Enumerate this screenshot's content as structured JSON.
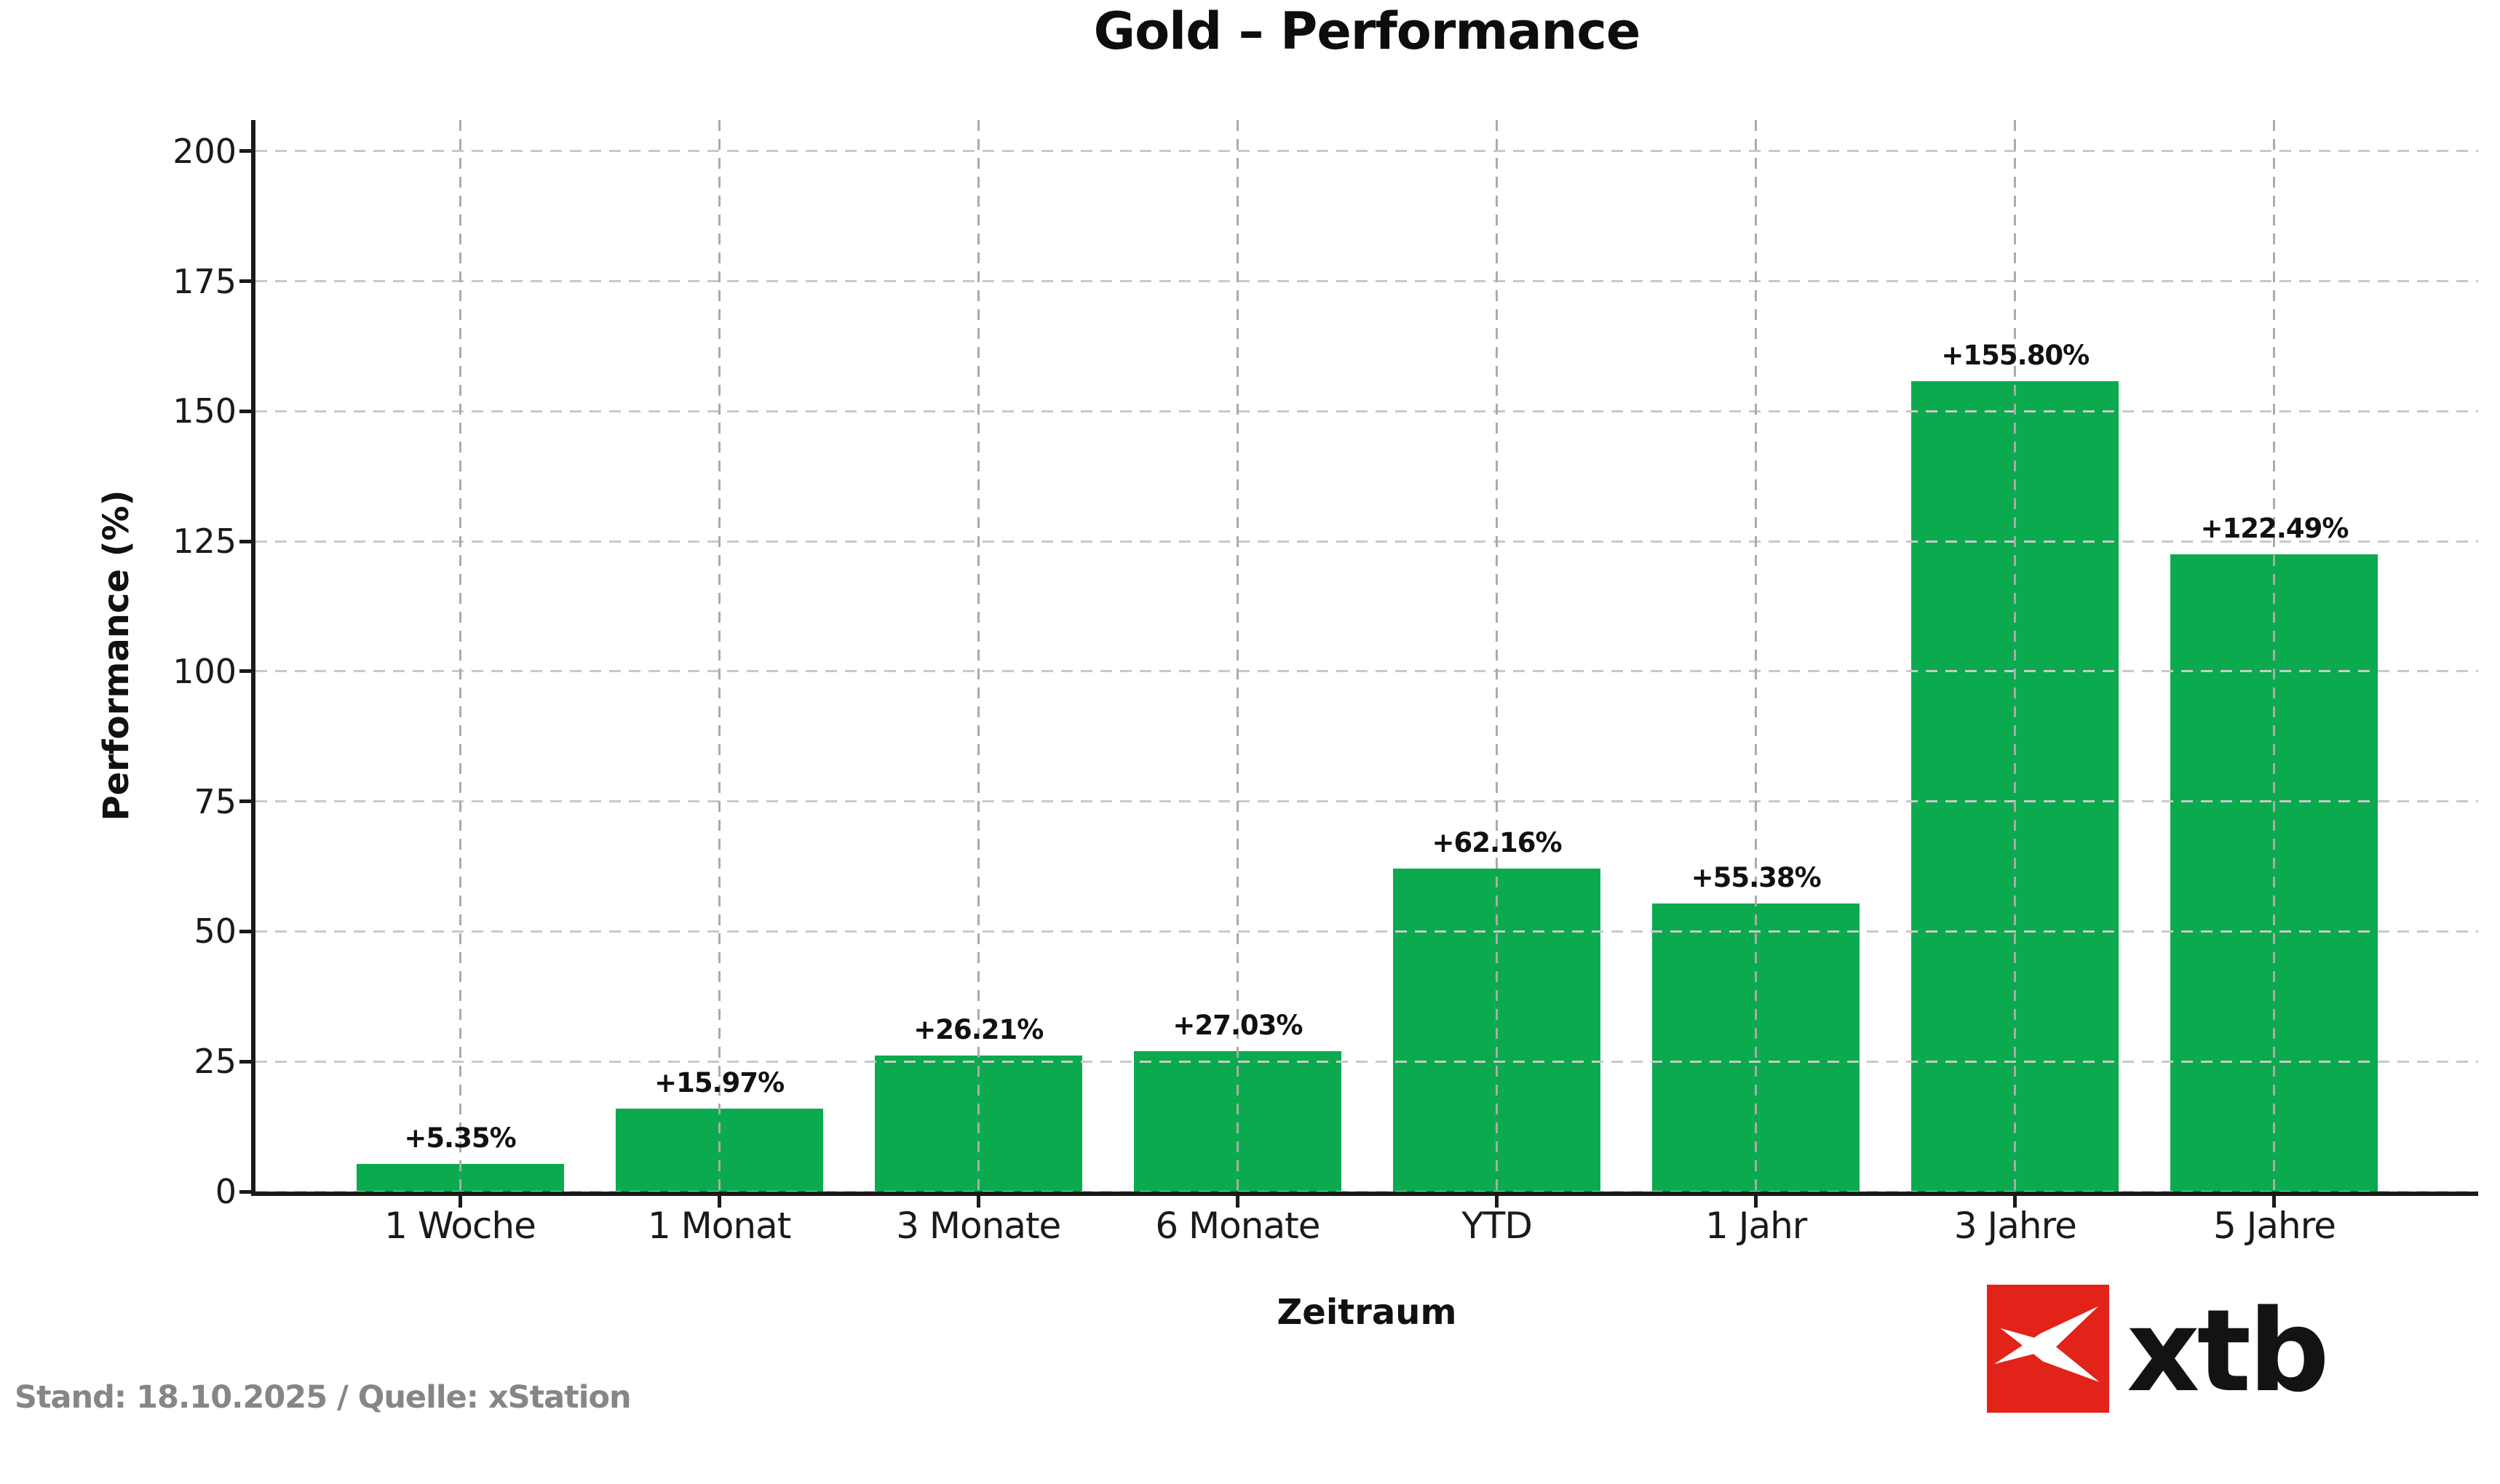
{
  "chart_data": {
    "type": "bar",
    "title": "Gold – Performance",
    "xlabel": "Zeitraum",
    "ylabel": "Performance (%)",
    "categories": [
      "1 Woche",
      "1 Monat",
      "3 Monate",
      "6 Monate",
      "YTD",
      "1 Jahr",
      "3 Jahre",
      "5 Jahre"
    ],
    "values": [
      5.35,
      15.97,
      26.21,
      27.03,
      62.16,
      55.38,
      155.8,
      122.49
    ],
    "value_labels": [
      "+5.35%",
      "+15.97%",
      "+26.21%",
      "+27.03%",
      "+62.16%",
      "+55.38%",
      "+155.80%",
      "+122.49%"
    ],
    "yticks": [
      0,
      25,
      50,
      75,
      100,
      125,
      150,
      175,
      200
    ],
    "ylim": [
      0,
      206
    ],
    "grid": true,
    "legend": "none"
  },
  "footer": {
    "source_note": "Stand: 18.10.2025 / Quelle: xStation",
    "logo_text": "xtb"
  },
  "colors": {
    "bar_green": "#0caa4e",
    "logo_red": "#e2231a",
    "source_gray": "#868686"
  }
}
